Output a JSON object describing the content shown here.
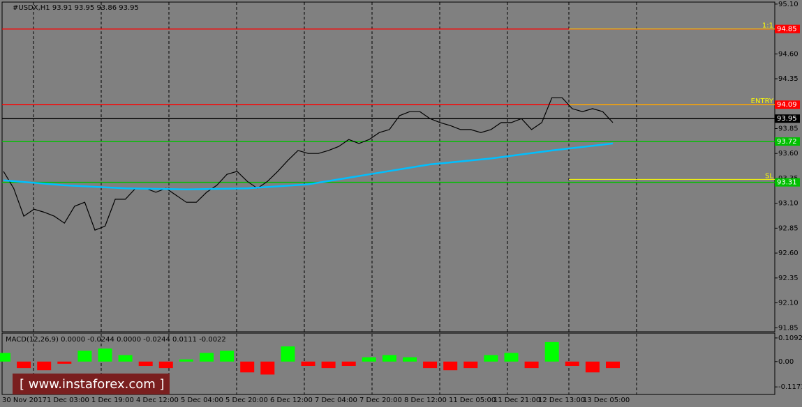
{
  "chart_data": {
    "type": "line",
    "title": "#USDX,H1  93.91 93.95 93.86 93.95",
    "categories": [
      "30 Nov 2017",
      "1 Dec 03:00",
      "1 Dec 19:00",
      "4 Dec 12:00",
      "5 Dec 04:00",
      "5 Dec 20:00",
      "6 Dec 12:00",
      "7 Dec 04:00",
      "7 Dec 20:00",
      "8 Dec 12:00",
      "11 Dec 05:00",
      "11 Dec 21:00",
      "12 Dec 13:00",
      "13 Dec 05:00"
    ],
    "price_values": [
      93.42,
      93.25,
      92.97,
      93.04,
      93.01,
      92.97,
      92.9,
      93.07,
      93.11,
      92.83,
      92.87,
      93.14,
      93.14,
      93.25,
      93.25,
      93.21,
      93.25,
      93.18,
      93.11,
      93.11,
      93.21,
      93.28,
      93.39,
      93.42,
      93.32,
      93.25,
      93.32,
      93.42,
      93.53,
      93.63,
      93.6,
      93.6,
      93.63,
      93.67,
      93.74,
      93.7,
      93.74,
      93.81,
      93.84,
      93.98,
      94.02,
      94.02,
      93.95,
      93.91,
      93.88,
      93.84,
      93.84,
      93.81,
      93.84,
      93.91,
      93.91,
      93.95,
      93.84,
      93.91,
      94.16,
      94.16,
      94.05,
      94.02,
      94.05,
      94.02,
      93.91
    ],
    "price_color": "#000000",
    "ma_values": [
      93.33,
      93.28,
      93.25,
      93.24,
      93.25,
      93.29,
      93.39,
      93.49,
      93.55,
      93.63,
      93.7
    ],
    "ma_color": "#00bfff",
    "ylim": [
      91.81,
      95.12
    ],
    "yticks": [
      {
        "value": 95.1,
        "label": "95.10"
      },
      {
        "value": 94.6,
        "label": "94.60"
      },
      94.35,
      93.85,
      {
        "value": 93.6,
        "label": "93.60"
      },
      93.35,
      {
        "value": 93.1,
        "label": "93.10"
      },
      92.85,
      {
        "value": 92.6,
        "label": "92.60"
      },
      92.35,
      {
        "value": 92.1,
        "label": "92.10"
      },
      91.85
    ],
    "levels": [
      {
        "value": 94.85,
        "color": "#ff0000"
      },
      {
        "value": 94.09,
        "color": "#ff0000"
      },
      {
        "value": 93.95,
        "color": "#000000"
      },
      {
        "value": 93.72,
        "color": "#00c000"
      },
      {
        "value": 93.31,
        "color": "#00c000"
      }
    ],
    "trade_lines": [
      {
        "label": "1:1",
        "value": 94.85
      },
      {
        "label": "ENTRY",
        "value": 94.09
      },
      {
        "label": "SL",
        "value": 93.34
      }
    ],
    "trade_color": "#ffff00",
    "macd": {
      "title": "MACD(12,26,9) 0.0000 -0.0244 0.0000 -0.0244 0.0111 -0.0022",
      "values": [
        0.04,
        -0.03,
        -0.04,
        -0.01,
        0.05,
        0.06,
        0.03,
        -0.02,
        -0.03,
        0.01,
        0.04,
        0.05,
        -0.05,
        -0.06,
        0.07,
        -0.02,
        -0.03,
        -0.02,
        0.02,
        0.03,
        0.02,
        -0.03,
        -0.04,
        -0.03,
        0.03,
        0.04,
        -0.03,
        0.09,
        -0.02,
        -0.05,
        -0.03
      ],
      "positive_color": "#00ff00",
      "negative_color": "#ff0000",
      "ylim": [
        -0.152,
        0.125
      ],
      "yticks": [
        0.1092,
        {
          "value": 0,
          "label": "0.00"
        },
        -0.1171
      ]
    },
    "watermark": "[ www.instaforex.com ]"
  }
}
